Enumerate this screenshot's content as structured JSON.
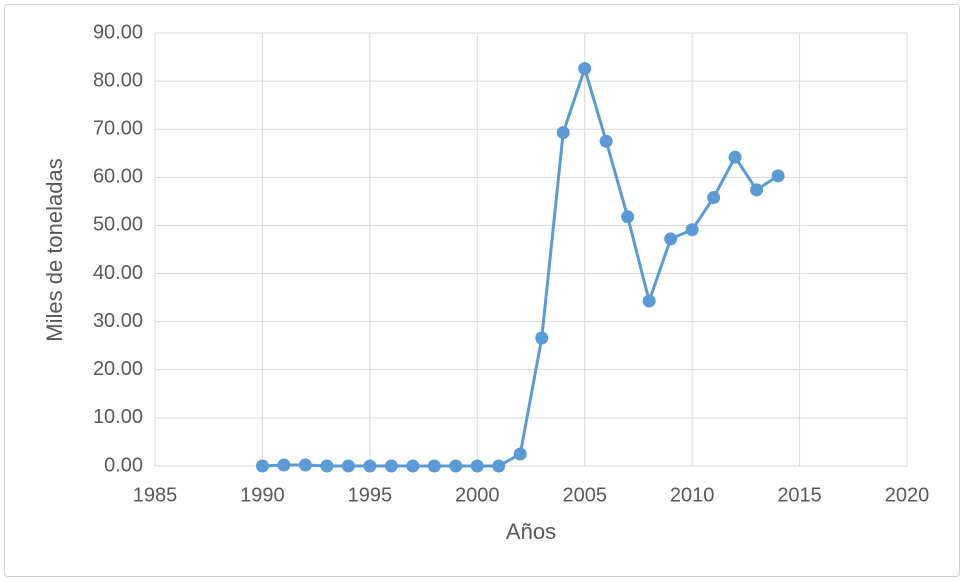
{
  "chart_data": {
    "type": "scatter",
    "x_label": "Años",
    "y_label": "Miles de toneladas",
    "x": [
      1990,
      1991,
      1992,
      1993,
      1994,
      1995,
      1996,
      1997,
      1998,
      1999,
      2000,
      2001,
      2002,
      2003,
      2004,
      2005,
      2006,
      2007,
      2008,
      2009,
      2010,
      2011,
      2012,
      2013,
      2014
    ],
    "series": [
      {
        "color": "#5b9bd5",
        "values": [
          0,
          0.2,
          0.2,
          0,
          0,
          0,
          0,
          0,
          0,
          0,
          0,
          0,
          2.5,
          26.6,
          69.3,
          82.6,
          67.5,
          51.8,
          34.3,
          47.2,
          49.1,
          55.8,
          64.2,
          57.4,
          60.3
        ]
      }
    ],
    "xlim": [
      1985,
      2020
    ],
    "xticks": [
      1985,
      1990,
      1995,
      2000,
      2005,
      2010,
      2015,
      2020
    ],
    "ylim": [
      0,
      90
    ],
    "yticks": [
      {
        "value": 0,
        "label": "0.00"
      },
      {
        "value": 10,
        "label": "10.00"
      },
      {
        "value": 20,
        "label": "20.00"
      },
      {
        "value": 30,
        "label": "30.00"
      },
      {
        "value": 40,
        "label": "40.00"
      },
      {
        "value": 50,
        "label": "50.00"
      },
      {
        "value": 60,
        "label": "60.00"
      },
      {
        "value": 70,
        "label": "70.00"
      },
      {
        "value": 80,
        "label": "80.00"
      },
      {
        "value": 90,
        "label": "90.00"
      }
    ],
    "grid": true,
    "connect": true
  }
}
